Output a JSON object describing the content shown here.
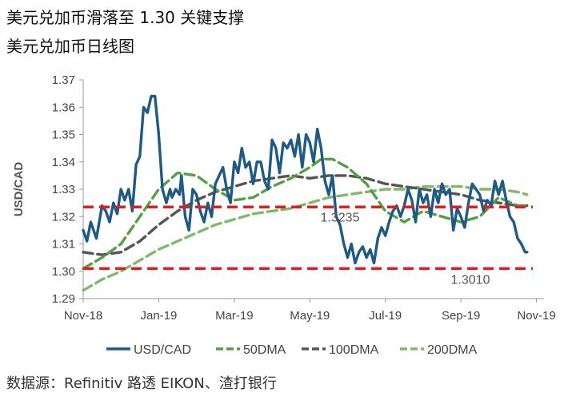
{
  "header": {
    "title": "美元兑加币滑落至 1.30 关键支撑",
    "subtitle": "美元兑加币日线图"
  },
  "footer": {
    "source": "数据源：Refinitiv 路透 EIKON、渣打银行"
  },
  "colors": {
    "usdcad": "#1f5a84",
    "dma50": "#55a045",
    "dma100": "#555555",
    "dma200": "#7dbb6a",
    "support": "#e21d1d",
    "axis": "#999999",
    "tick_text": "#444444"
  },
  "chart_data": {
    "type": "line",
    "title": "美元兑加币日线图",
    "xlabel": "",
    "ylabel": "USD/CAD",
    "ylim": [
      1.29,
      1.37
    ],
    "yticks": [
      "1.29",
      "1.30",
      "1.31",
      "1.32",
      "1.33",
      "1.34",
      "1.35",
      "1.36",
      "1.37"
    ],
    "categories": [
      "Nov-18",
      "Jan-19",
      "Mar-19",
      "May-19",
      "Jul-19",
      "Sep-19",
      "Nov-19"
    ],
    "x_unit": "months since 2018-11-01",
    "xlim": [
      0,
      12.2
    ],
    "legend_position": "bottom",
    "series": [
      {
        "name": "USD/CAD",
        "style": "solid",
        "x": [
          0,
          0.1,
          0.2,
          0.35,
          0.5,
          0.6,
          0.7,
          0.8,
          0.9,
          1.0,
          1.1,
          1.2,
          1.3,
          1.4,
          1.5,
          1.6,
          1.7,
          1.8,
          1.9,
          2.0,
          2.1,
          2.2,
          2.3,
          2.35,
          2.45,
          2.55,
          2.6,
          2.7,
          2.8,
          2.9,
          3.0,
          3.1,
          3.2,
          3.3,
          3.4,
          3.5,
          3.6,
          3.7,
          3.8,
          3.9,
          4.0,
          4.1,
          4.2,
          4.3,
          4.4,
          4.5,
          4.6,
          4.7,
          4.8,
          4.9,
          5.0,
          5.1,
          5.2,
          5.3,
          5.4,
          5.5,
          5.6,
          5.7,
          5.8,
          5.9,
          6.0,
          6.1,
          6.2,
          6.3,
          6.4,
          6.5,
          6.6,
          6.7,
          6.8,
          6.9,
          7.0,
          7.1,
          7.2,
          7.3,
          7.4,
          7.5,
          7.6,
          7.7,
          7.8,
          7.9,
          8.0,
          8.1,
          8.2,
          8.3,
          8.4,
          8.5,
          8.6,
          8.7,
          8.8,
          8.9,
          9.0,
          9.1,
          9.2,
          9.3,
          9.4,
          9.5,
          9.6,
          9.7,
          9.8,
          9.9,
          10.0,
          10.1,
          10.2,
          10.3,
          10.4,
          10.5,
          10.6,
          10.7,
          10.8,
          10.9,
          11.0,
          11.1,
          11.2,
          11.3,
          11.4,
          11.5,
          11.6,
          11.7,
          11.75
        ],
        "values": [
          1.315,
          1.311,
          1.318,
          1.312,
          1.324,
          1.322,
          1.318,
          1.325,
          1.321,
          1.33,
          1.326,
          1.33,
          1.322,
          1.339,
          1.342,
          1.36,
          1.358,
          1.364,
          1.364,
          1.35,
          1.33,
          1.325,
          1.33,
          1.327,
          1.33,
          1.328,
          1.335,
          1.32,
          1.315,
          1.33,
          1.328,
          1.322,
          1.318,
          1.325,
          1.32,
          1.332,
          1.335,
          1.338,
          1.33,
          1.325,
          1.34,
          1.336,
          1.345,
          1.338,
          1.34,
          1.332,
          1.34,
          1.34,
          1.333,
          1.33,
          1.348,
          1.345,
          1.336,
          1.347,
          1.345,
          1.348,
          1.342,
          1.35,
          1.338,
          1.35,
          1.347,
          1.34,
          1.352,
          1.345,
          1.333,
          1.328,
          1.335,
          1.32,
          1.317,
          1.31,
          1.305,
          1.31,
          1.303,
          1.307,
          1.309,
          1.305,
          1.308,
          1.303,
          1.312,
          1.316,
          1.313,
          1.318,
          1.322,
          1.324,
          1.32,
          1.324,
          1.33,
          1.326,
          1.318,
          1.33,
          1.325,
          1.328,
          1.32,
          1.33,
          1.325,
          1.332,
          1.328,
          1.33,
          1.315,
          1.323,
          1.32,
          1.316,
          1.325,
          1.332,
          1.33,
          1.328,
          1.322,
          1.326,
          1.324,
          1.333,
          1.328,
          1.333,
          1.326,
          1.32,
          1.318,
          1.312,
          1.31,
          1.307,
          1.307
        ]
      },
      {
        "name": "50DMA",
        "style": "dashed",
        "x": [
          0,
          0.5,
          1.0,
          1.5,
          2.0,
          2.5,
          3.0,
          3.5,
          4.0,
          4.5,
          5.0,
          5.5,
          6.0,
          6.3,
          6.6,
          7.0,
          7.5,
          8.0,
          8.5,
          9.0,
          9.5,
          10.0,
          10.5,
          11.0,
          11.5,
          11.75
        ],
        "values": [
          1.301,
          1.305,
          1.31,
          1.32,
          1.33,
          1.336,
          1.335,
          1.33,
          1.326,
          1.327,
          1.331,
          1.334,
          1.338,
          1.341,
          1.341,
          1.338,
          1.332,
          1.322,
          1.318,
          1.322,
          1.32,
          1.318,
          1.32,
          1.327,
          1.324,
          1.324
        ]
      },
      {
        "name": "100DMA",
        "style": "dashed",
        "x": [
          0,
          0.5,
          1.0,
          1.5,
          2.0,
          2.5,
          3.0,
          3.5,
          4.0,
          4.5,
          5.0,
          5.5,
          6.0,
          6.5,
          7.0,
          7.5,
          8.0,
          8.5,
          9.0,
          9.5,
          10.0,
          10.5,
          11.0,
          11.5,
          11.75
        ],
        "values": [
          1.307,
          1.306,
          1.307,
          1.311,
          1.317,
          1.322,
          1.326,
          1.329,
          1.331,
          1.333,
          1.334,
          1.335,
          1.334,
          1.335,
          1.335,
          1.334,
          1.332,
          1.331,
          1.33,
          1.329,
          1.328,
          1.326,
          1.325,
          1.324,
          1.324
        ]
      },
      {
        "name": "200DMA",
        "style": "dashed",
        "x": [
          0,
          0.5,
          1.0,
          1.5,
          2.0,
          2.5,
          3.0,
          3.5,
          4.0,
          4.5,
          5.0,
          5.5,
          6.0,
          6.5,
          7.0,
          7.5,
          8.0,
          8.5,
          9.0,
          9.5,
          10.0,
          10.5,
          11.0,
          11.5,
          11.75
        ],
        "values": [
          1.293,
          1.297,
          1.3,
          1.304,
          1.308,
          1.311,
          1.314,
          1.317,
          1.319,
          1.321,
          1.322,
          1.323,
          1.325,
          1.327,
          1.328,
          1.329,
          1.33,
          1.33,
          1.331,
          1.331,
          1.331,
          1.33,
          1.33,
          1.329,
          1.328
        ]
      }
    ],
    "reference_lines": [
      {
        "value": 1.3235,
        "label": "1.3235"
      },
      {
        "value": 1.301,
        "label": "1.3010"
      }
    ]
  }
}
